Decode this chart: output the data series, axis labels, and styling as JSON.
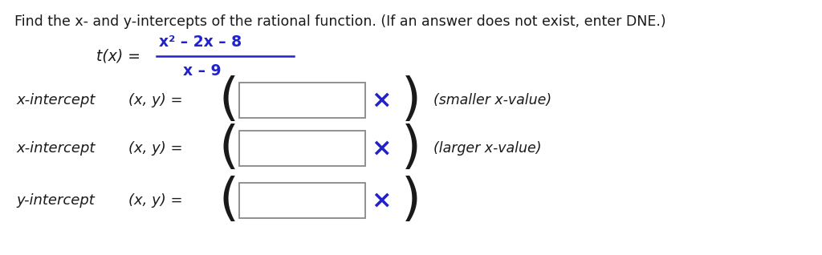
{
  "background_color": "#ffffff",
  "header_text": "Find the x- and y-intercepts of the rational function. (If an answer does not exist, enter DNE.)",
  "header_fontsize": 12.5,
  "numerator": "x² – 2x – 8",
  "denominator": "x – 9",
  "fraction_color": "#2222cc",
  "text_color": "#1a1a1a",
  "cross_color": "#2222cc",
  "box_edge_color": "#888888",
  "rows": [
    {
      "label": "x-intercept",
      "hint": "(smaller x-value)"
    },
    {
      "label": "x-intercept",
      "hint": "(larger x-value)"
    },
    {
      "label": "y-intercept",
      "hint": ""
    }
  ],
  "figsize": [
    10.24,
    3.18
  ],
  "dpi": 100
}
